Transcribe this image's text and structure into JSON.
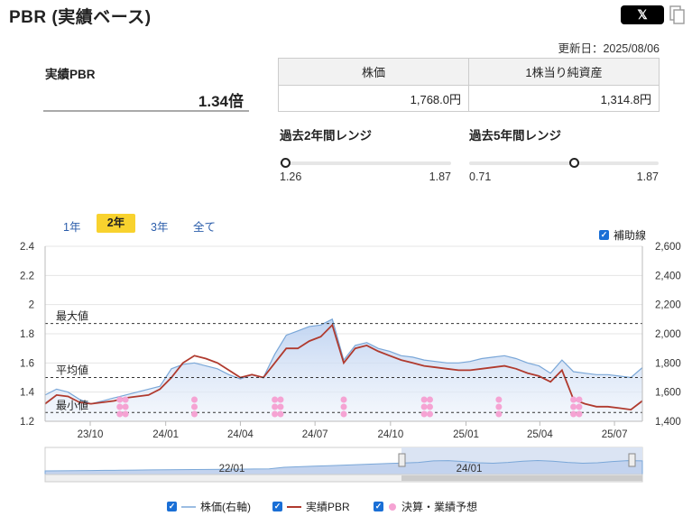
{
  "header": {
    "title": "PBR (実績ベース)",
    "x_label": "𝕏"
  },
  "updated": "更新日：2025/08/06",
  "pbr": {
    "label": "実績PBR",
    "value": "1.34倍"
  },
  "table": {
    "headers": [
      "株価",
      "1株当り純資産"
    ],
    "values": [
      "1,768.0円",
      "1,314.8円"
    ]
  },
  "ranges": [
    {
      "label": "過去2年間レンジ",
      "min": "1.26",
      "max": "1.87",
      "position": 0.03
    },
    {
      "label": "過去5年間レンジ",
      "min": "0.71",
      "max": "1.87",
      "position": 0.55
    }
  ],
  "tabs": [
    "1年",
    "2年",
    "3年",
    "全て"
  ],
  "active_tab": "2年",
  "aux_label": "補助線",
  "ref_lines": {
    "max": "最大値",
    "avg": "平均値",
    "min": "最小値"
  },
  "legend": {
    "price": "株価(右軸)",
    "pbr": "実績PBR",
    "earnings": "決算・業績予想"
  },
  "colors": {
    "price": "#7aa7d8",
    "pbr": "#b03a2e",
    "earnings": "#f5a3d3",
    "area": "#c9d9f0",
    "tab_active": "#f8d22e",
    "check": "#1a6fd6"
  },
  "navigator_labels": [
    "22/01",
    "24/01"
  ],
  "chart_data": {
    "type": "line",
    "x": [
      "2023-08-07",
      "2023-08-21",
      "2023-09-04",
      "2023-09-18",
      "2023-10-02",
      "2023-10-16",
      "2023-10-30",
      "2023-11-13",
      "2023-11-27",
      "2023-12-11",
      "2023-12-25",
      "2024-01-08",
      "2024-01-22",
      "2024-02-05",
      "2024-02-19",
      "2024-03-04",
      "2024-03-18",
      "2024-04-01",
      "2024-04-15",
      "2024-04-29",
      "2024-05-13",
      "2024-05-27",
      "2024-06-10",
      "2024-06-24",
      "2024-07-08",
      "2024-07-22",
      "2024-08-05",
      "2024-08-19",
      "2024-09-02",
      "2024-09-16",
      "2024-09-30",
      "2024-10-14",
      "2024-10-28",
      "2024-11-11",
      "2024-11-25",
      "2024-12-09",
      "2024-12-23",
      "2025-01-06",
      "2025-01-20",
      "2025-02-03",
      "2025-02-17",
      "2025-03-03",
      "2025-03-17",
      "2025-03-31",
      "2025-04-14",
      "2025-04-28",
      "2025-05-12",
      "2025-05-26",
      "2025-06-09",
      "2025-06-23",
      "2025-07-07",
      "2025-07-21",
      "2025-08-04"
    ],
    "series": [
      {
        "name": "実績PBR",
        "axis": "left",
        "values": [
          1.32,
          1.38,
          1.37,
          1.33,
          1.32,
          1.33,
          1.34,
          1.36,
          1.37,
          1.38,
          1.42,
          1.5,
          1.6,
          1.65,
          1.63,
          1.6,
          1.55,
          1.5,
          1.52,
          1.5,
          1.6,
          1.7,
          1.7,
          1.75,
          1.78,
          1.86,
          1.6,
          1.7,
          1.72,
          1.68,
          1.65,
          1.62,
          1.6,
          1.58,
          1.57,
          1.56,
          1.55,
          1.55,
          1.56,
          1.57,
          1.58,
          1.56,
          1.53,
          1.51,
          1.47,
          1.55,
          1.35,
          1.32,
          1.3,
          1.3,
          1.29,
          1.28,
          1.34
        ]
      },
      {
        "name": "株価(右軸)",
        "axis": "right",
        "values": [
          1580,
          1620,
          1600,
          1550,
          1520,
          1540,
          1560,
          1580,
          1600,
          1620,
          1640,
          1760,
          1790,
          1800,
          1780,
          1760,
          1720,
          1690,
          1720,
          1700,
          1860,
          1990,
          2020,
          2050,
          2060,
          2100,
          1820,
          1920,
          1940,
          1900,
          1880,
          1850,
          1840,
          1820,
          1810,
          1800,
          1800,
          1810,
          1830,
          1840,
          1850,
          1830,
          1800,
          1780,
          1730,
          1820,
          1740,
          1730,
          1720,
          1720,
          1710,
          1700,
          1768
        ]
      },
      {
        "name": "決算・業績予想",
        "type": "scatter",
        "x": [
          "2023-11-06",
          "2023-11-13",
          "2024-02-05",
          "2024-05-13",
          "2024-05-20",
          "2024-08-05",
          "2024-11-11",
          "2024-11-18",
          "2025-02-10",
          "2025-05-12",
          "2025-05-19"
        ]
      }
    ],
    "ref_values": {
      "max": 1.87,
      "avg": 1.5,
      "min": 1.26
    },
    "xticks": [
      "23/10",
      "24/01",
      "24/04",
      "24/07",
      "24/10",
      "25/01",
      "25/04",
      "25/07"
    ],
    "yticks_left": [
      "1.2",
      "1.4",
      "1.6",
      "1.8",
      "2",
      "2.2",
      "2.4"
    ],
    "yticks_right": [
      "1,400",
      "1,600",
      "1,800",
      "2,000",
      "2,200",
      "2,400",
      "2,600"
    ],
    "ylim_left": [
      1.2,
      2.4
    ],
    "ylim_right": [
      1400,
      2600
    ]
  }
}
